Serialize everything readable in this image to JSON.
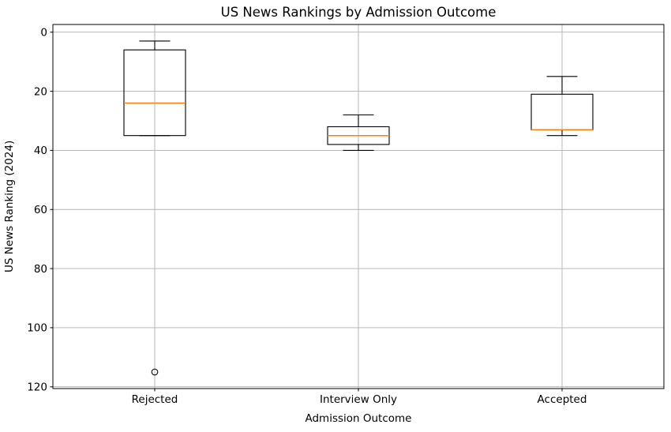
{
  "chart_data": {
    "type": "boxplot",
    "title": "US News Rankings by Admission Outcome",
    "xlabel": "Admission Outcome",
    "ylabel": "US News Ranking (2024)",
    "categories": [
      "Rejected",
      "Interview Only",
      "Accepted"
    ],
    "y_ticks": [
      0,
      20,
      40,
      60,
      80,
      100,
      120
    ],
    "ylim_top": -2.6,
    "ylim_bottom": 120.6,
    "y_axis_inverted": true,
    "grid": true,
    "legend": "none",
    "boxes": [
      {
        "category": "Rejected",
        "whisker_min": 3,
        "q1": 6,
        "median": 24,
        "q3": 35,
        "whisker_max": 35,
        "outliers": [
          115
        ]
      },
      {
        "category": "Interview Only",
        "whisker_min": 28,
        "q1": 32,
        "median": 35,
        "q3": 38,
        "whisker_max": 40,
        "outliers": []
      },
      {
        "category": "Accepted",
        "whisker_min": 15,
        "q1": 21,
        "median": 33,
        "q3": 33,
        "whisker_max": 35,
        "outliers": []
      }
    ],
    "colors": {
      "median": "#ff7f0e",
      "box": "#000000",
      "grid": "#b0b0b0",
      "background": "#ffffff",
      "text": "#000000"
    }
  }
}
